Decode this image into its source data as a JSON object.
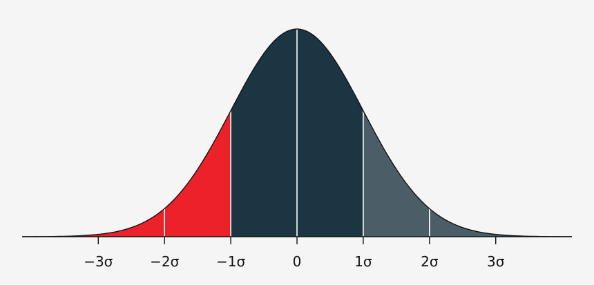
{
  "chart_data": {
    "type": "area",
    "title": "",
    "xlabel": "",
    "ylabel": "",
    "distribution": "normal",
    "mean": 0,
    "std": 1,
    "xlim": [
      -4.15,
      4.15
    ],
    "ticks": [
      {
        "value": -3,
        "label": "−3σ"
      },
      {
        "value": -2,
        "label": "−2σ"
      },
      {
        "value": -1,
        "label": "−1σ"
      },
      {
        "value": 0,
        "label": "0"
      },
      {
        "value": 1,
        "label": "1σ"
      },
      {
        "value": 2,
        "label": "2σ"
      },
      {
        "value": 3,
        "label": "3σ"
      }
    ],
    "regions": [
      {
        "from": -4.15,
        "to": -1,
        "color": "#ed2129"
      },
      {
        "from": -1,
        "to": 1,
        "color": "#1b3542"
      },
      {
        "from": 1,
        "to": 4.15,
        "color": "#4b5d67"
      }
    ],
    "divider_lines": [
      -2,
      -1,
      0,
      1,
      2
    ],
    "colors": {
      "background": "#f5f5f5",
      "curve": "#111111",
      "axis": "#111111",
      "divider": "#ffffff"
    },
    "grid": false,
    "legend": "none"
  }
}
